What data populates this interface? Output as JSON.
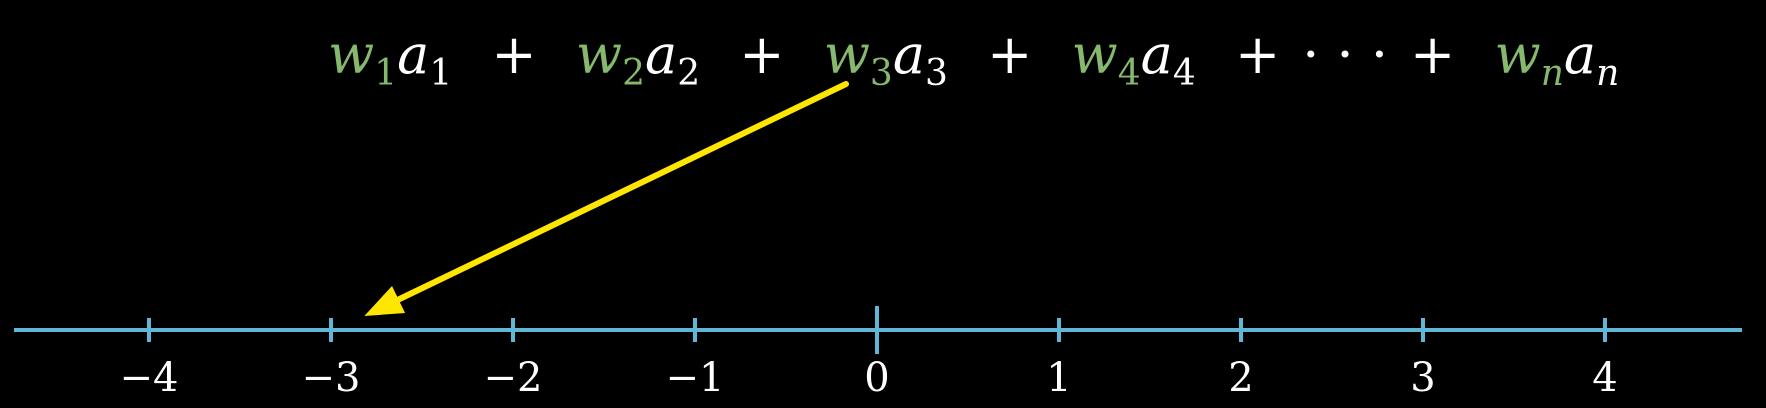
{
  "formula": {
    "terms": [
      {
        "weight": "w",
        "weight_sub": "1",
        "act": "a",
        "act_sub": "1"
      },
      {
        "weight": "w",
        "weight_sub": "2",
        "act": "a",
        "act_sub": "2"
      },
      {
        "weight": "w",
        "weight_sub": "3",
        "act": "a",
        "act_sub": "3"
      },
      {
        "weight": "w",
        "weight_sub": "4",
        "act": "a",
        "act_sub": "4"
      },
      {
        "weight": "w",
        "weight_sub": "n",
        "act": "a",
        "act_sub": "n"
      }
    ],
    "plus": "+",
    "ellipsis": "· · ·"
  },
  "number_line": {
    "range": [
      -4,
      4
    ],
    "ticks": [
      {
        "value": -4,
        "label": "−4"
      },
      {
        "value": -3,
        "label": "−3"
      },
      {
        "value": -2,
        "label": "−2"
      },
      {
        "value": -1,
        "label": "−1"
      },
      {
        "value": 0,
        "label": "0"
      },
      {
        "value": 1,
        "label": "1"
      },
      {
        "value": 2,
        "label": "2"
      },
      {
        "value": 3,
        "label": "3"
      },
      {
        "value": 4,
        "label": "4"
      }
    ],
    "pointer_target_value": -2.85
  },
  "colors": {
    "background": "#000000",
    "weight_green": "#86b86e",
    "axis_blue": "#5fb7d6",
    "arrow_yellow": "#ffe600",
    "text_white": "#ffffff"
  }
}
